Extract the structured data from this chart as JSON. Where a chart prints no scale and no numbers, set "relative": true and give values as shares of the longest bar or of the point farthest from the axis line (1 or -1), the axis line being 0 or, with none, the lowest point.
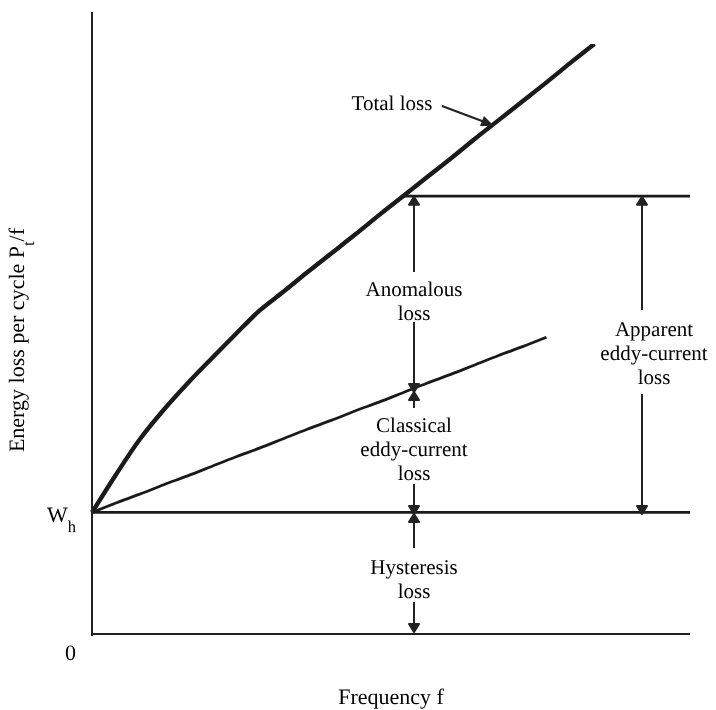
{
  "chart_data": {
    "type": "line",
    "relative": true,
    "xlabel": "Frequency f",
    "ylabel": "Energy loss per cycle P$_{t}$/f",
    "categories": [
      null,
      null,
      null,
      null,
      null,
      null,
      null,
      null,
      null,
      null,
      null,
      null,
      null,
      null,
      null,
      null,
      null,
      null,
      null,
      null,
      null,
      null,
      null,
      null,
      null,
      null
    ],
    "series": [
      {
        "color": "#1a1a1a",
        "values": [
          0.206,
          0.27,
          0.33,
          0.38,
          0.425,
          0.467,
          0.508,
          0.548,
          0.58,
          0.613,
          0.645,
          0.677,
          0.71,
          0.742,
          0.774,
          0.806,
          0.839,
          0.871,
          0.903,
          0.935,
          0.968,
          1.0,
          null,
          null,
          null,
          null
        ]
      },
      {
        "color": "#1a1a1a",
        "values": [
          0.206,
          0.222,
          0.237,
          0.253,
          0.268,
          0.284,
          0.3,
          0.315,
          0.331,
          0.347,
          0.362,
          0.378,
          0.393,
          0.409,
          0.425,
          0.44,
          0.456,
          0.472,
          0.487,
          0.503,
          null,
          null,
          null,
          null,
          null,
          null
        ]
      },
      {
        "color": "#1a1a1a",
        "values": [
          0.206,
          0.206,
          0.206,
          0.206,
          0.206,
          0.206,
          0.206,
          0.206,
          0.206,
          0.206,
          0.206,
          0.206,
          0.206,
          0.206,
          0.206,
          0.206,
          0.206,
          0.206,
          0.206,
          0.206,
          0.206,
          0.206,
          0.206,
          0.206,
          0.206,
          0.206
        ]
      },
      {
        "color": "#1a1a1a",
        "values": [
          null,
          null,
          null,
          null,
          null,
          null,
          null,
          null,
          null,
          null,
          null,
          null,
          null,
          0.742,
          0.742,
          0.742,
          0.742,
          0.742,
          0.742,
          0.742,
          0.742,
          0.742,
          0.742,
          0.742,
          0.742,
          0.742
        ]
      }
    ],
    "annotations": [
      "Total loss",
      "Anomalous loss",
      "Classical eddy-current loss",
      "Apparent eddy-current loss",
      "Hysteresis loss",
      "W$_{h}$",
      "0"
    ],
    "marker": "none",
    "line_style": "solid"
  }
}
